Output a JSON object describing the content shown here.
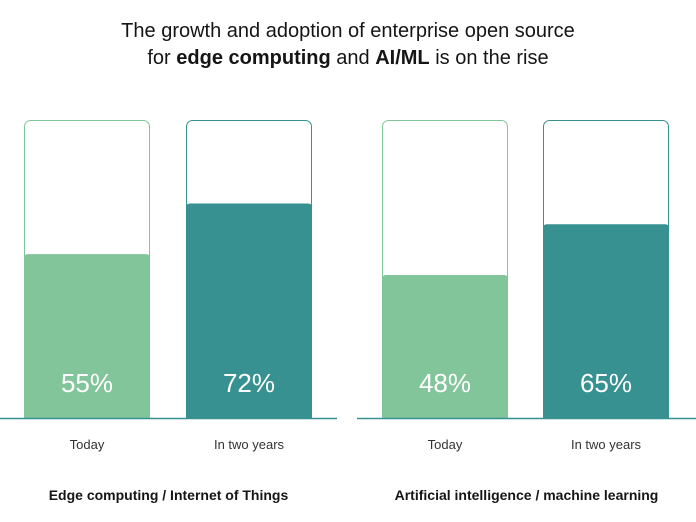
{
  "title": {
    "line1": "The growth and adoption of enterprise open source",
    "line2_prefix": "for ",
    "line2_bold1": "edge computing",
    "line2_mid": " and ",
    "line2_bold2": "AI/ML",
    "line2_suffix": " is on the rise"
  },
  "colors": {
    "today": "#82c59b",
    "future": "#379190",
    "outline_today": "#82c59b",
    "outline_future": "#379190",
    "baseline": "#379190",
    "value_text": "#ffffff"
  },
  "chart_data": {
    "type": "bar",
    "ylim": [
      0,
      100
    ],
    "groups": [
      {
        "name": "Edge computing / Internet of Things",
        "categories": [
          "Today",
          "In two years"
        ],
        "values": [
          55,
          72
        ],
        "labels": [
          "55%",
          "72%"
        ]
      },
      {
        "name": "Artificial intelligence / machine learning",
        "categories": [
          "Today",
          "In two years"
        ],
        "values": [
          48,
          65
        ],
        "labels": [
          "48%",
          "65%"
        ]
      }
    ]
  }
}
